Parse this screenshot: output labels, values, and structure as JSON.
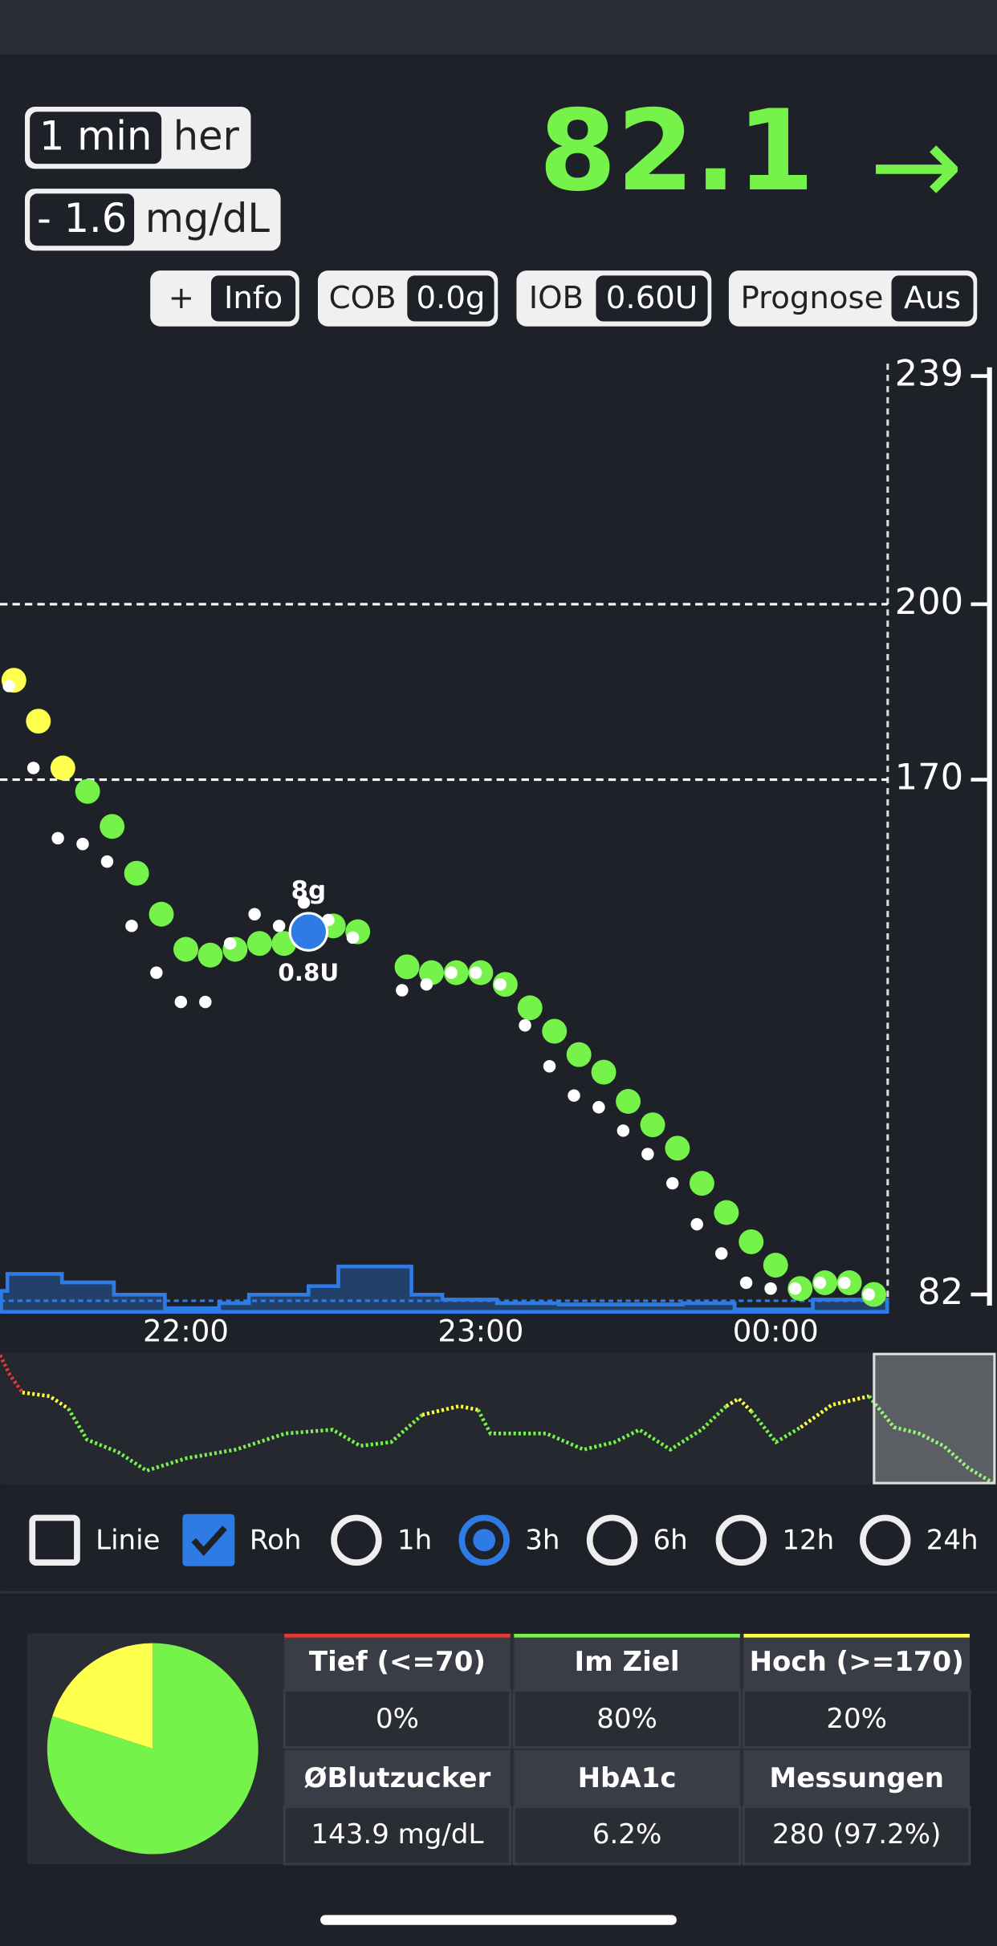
{
  "status": {
    "age_value": "1 min",
    "age_unit": "her",
    "delta_value": "- 1.6",
    "delta_unit": "mg/dL",
    "bg": "82.1",
    "trend": "→"
  },
  "buttons": [
    {
      "left": "+",
      "right": "Info"
    },
    {
      "left": "COB",
      "right": "0.0g"
    },
    {
      "left": "IOB",
      "right": "0.60U"
    },
    {
      "left": "Prognose",
      "right": "Aus"
    }
  ],
  "chart": {
    "type": "scatter",
    "ylim": [
      82,
      239
    ],
    "yticks": [
      82,
      170,
      200,
      239
    ],
    "grid_lines": [
      170,
      200
    ],
    "xlim": [
      21.37,
      24.38
    ],
    "xticks": [
      {
        "value": 22,
        "label": "22:00"
      },
      {
        "value": 23,
        "label": "23:00"
      },
      {
        "value": 24,
        "label": "00:00"
      }
    ],
    "colors": {
      "in_range": "#76f34a",
      "high": "#ffff4d",
      "raw": "#ffffff",
      "treatment": "#2f7be5",
      "basal": "#2f7be5"
    },
    "high_limit": 170,
    "glucose": {
      "x": [
        21.417,
        21.5,
        21.583,
        21.667,
        21.75,
        21.833,
        21.917,
        22.0,
        22.083,
        22.167,
        22.25,
        22.333,
        22.417,
        22.5,
        22.583,
        22.75,
        22.833,
        22.917,
        23.0,
        23.083,
        23.167,
        23.25,
        23.333,
        23.417,
        23.5,
        23.583,
        23.667,
        23.75,
        23.833,
        23.917,
        24.0,
        24.083,
        24.167,
        24.25,
        24.333
      ],
      "values": [
        187,
        180,
        172,
        168,
        162,
        154,
        147,
        141,
        140,
        141,
        142,
        142,
        145,
        145,
        144,
        138,
        137,
        137,
        137,
        135,
        131,
        127,
        123,
        120,
        115,
        111,
        107,
        101,
        96,
        91,
        87,
        83,
        84,
        84,
        82
      ],
      "raw": [
        186,
        172,
        160,
        159,
        156,
        145,
        137,
        132,
        132,
        142,
        147,
        145,
        149,
        146,
        143,
        134,
        135,
        137,
        137,
        135,
        128,
        121,
        116,
        114,
        110,
        106,
        101,
        94,
        89,
        84,
        83,
        83,
        84,
        84,
        82
      ]
    },
    "treatments": [
      {
        "x": 22.416,
        "y": 144,
        "carbs": "8g",
        "insulin": "0.8U"
      }
    ],
    "basal": {
      "bins": [
        21.374,
        21.395,
        21.58,
        21.756,
        21.929,
        22.113,
        22.214,
        22.416,
        22.517,
        22.765,
        22.87,
        23.055,
        23.265,
        23.685,
        23.861,
        24.126,
        24.378
      ],
      "values": [
        189,
        344,
        267,
        156,
        33,
        78,
        156,
        233,
        411,
        156,
        111,
        78,
        67,
        78,
        22,
        111
      ],
      "profile": 100,
      "lim": [
        0,
        450
      ]
    }
  },
  "controls": [
    {
      "label": "Linie",
      "kind": "checkbox",
      "checked": false
    },
    {
      "label": "Roh",
      "kind": "checkbox",
      "checked": true
    },
    {
      "label": "1h",
      "kind": "radio",
      "checked": false
    },
    {
      "label": "3h",
      "kind": "radio",
      "checked": true
    },
    {
      "label": "6h",
      "kind": "radio",
      "checked": false
    },
    {
      "label": "12h",
      "kind": "radio",
      "checked": false
    },
    {
      "label": "24h",
      "kind": "radio",
      "checked": false
    }
  ],
  "stats": {
    "headers": [
      "Tief (<=70)",
      "Im Ziel",
      "Hoch (>=170)"
    ],
    "percent_labels": [
      "0%",
      "80%",
      "20%"
    ],
    "percents": [
      0,
      80,
      20
    ],
    "colors": [
      "#e53935",
      "#76f34a",
      "#ffff4d"
    ],
    "headers2": [
      "ØBlutzucker",
      "HbA1c",
      "Messungen"
    ],
    "values2": [
      "143.9 mg/dL",
      "6.2%",
      "280 (97.2%)"
    ]
  }
}
